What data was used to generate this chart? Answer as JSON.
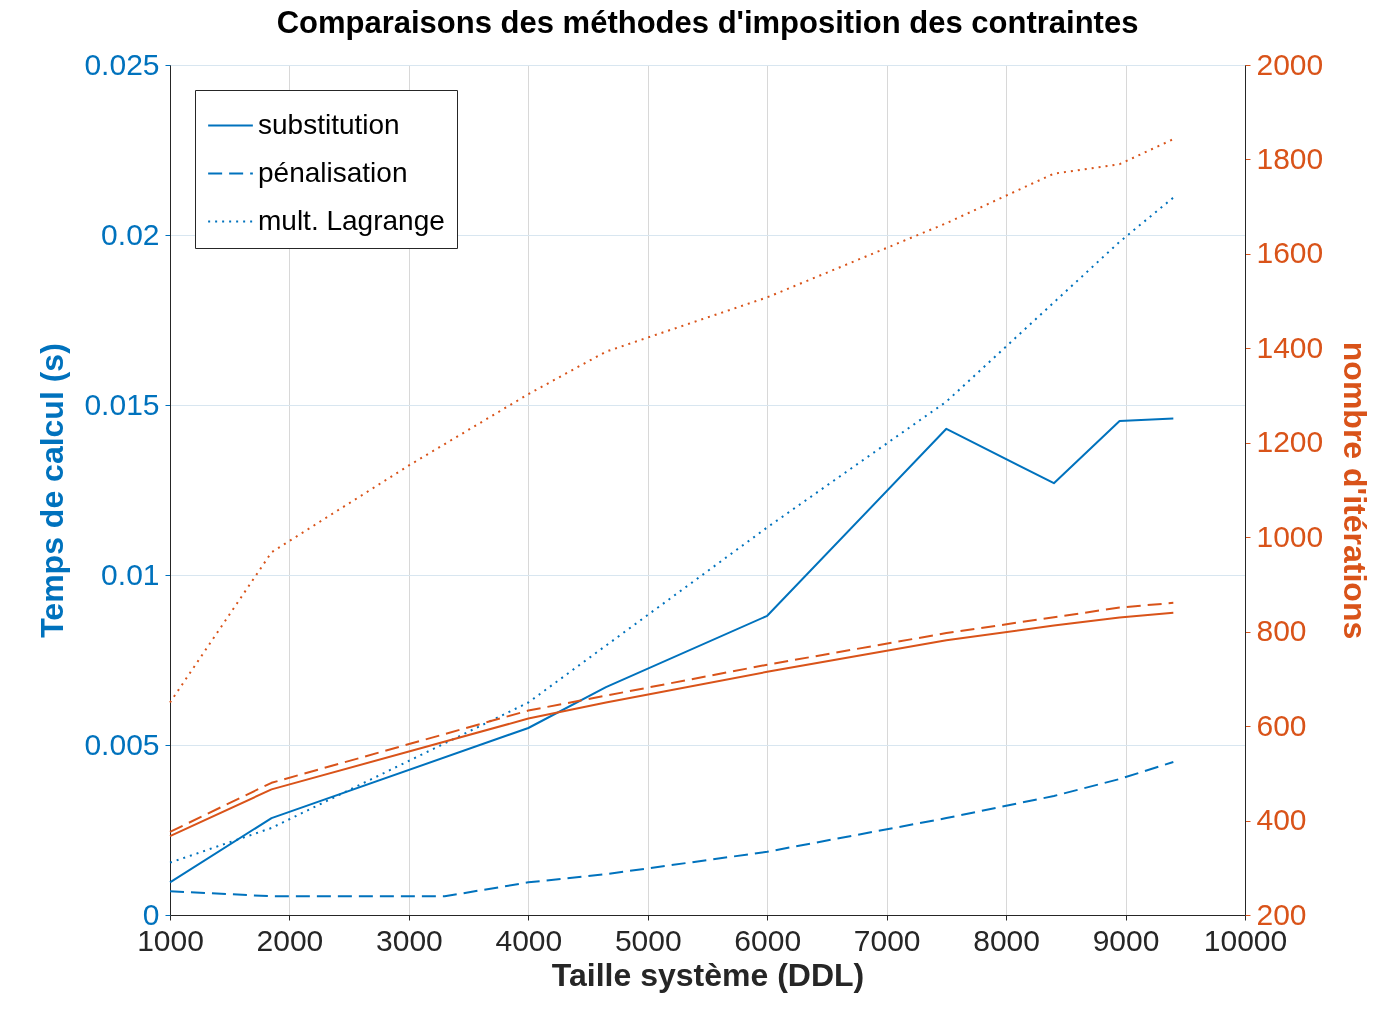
{
  "chart_data": {
    "type": "line",
    "title": "Comparaisons des méthodes d'imposition des contraintes",
    "xlabel": "Taille système (DDL)",
    "ylabel": "Temps de calcul (s)",
    "y2label": "nombre d'itérations",
    "xlim": [
      1000,
      10000
    ],
    "xticks": [
      1000,
      2000,
      3000,
      4000,
      5000,
      6000,
      7000,
      8000,
      9000,
      10000
    ],
    "ylim": [
      0,
      0.025
    ],
    "yticks": [
      0,
      0.005,
      0.01,
      0.015,
      0.02,
      0.025
    ],
    "y2lim": [
      200,
      2000
    ],
    "y2ticks": [
      200,
      400,
      600,
      800,
      1000,
      1200,
      1400,
      1600,
      1800,
      2000
    ],
    "grid": true,
    "legend": "top left",
    "marker": "none",
    "series": [
      {
        "name": "substitution",
        "color": "#0072bd",
        "line_style": "solid",
        "x": [
          1000,
          1850,
          4000,
          4650,
          6000,
          7500,
          8400,
          8950,
          9400
        ],
        "values": [
          0.00096,
          0.00285,
          0.0055,
          0.0067,
          0.0088,
          0.0143,
          0.0127,
          0.01453,
          0.0146
        ]
      },
      {
        "name": "pénalisation",
        "color": "#0072bd",
        "line_style": "dashed",
        "x": [
          1000,
          1850,
          3300,
          4000,
          4650,
          6000,
          7500,
          8400,
          8950,
          9400
        ],
        "values": [
          0.0007,
          0.00055,
          0.00055,
          0.00096,
          0.0012,
          0.00186,
          0.00285,
          0.0035,
          0.004,
          0.0045
        ]
      },
      {
        "name": "mult. Lagrange",
        "color": "#0072bd",
        "line_style": "dotted",
        "x": [
          1000,
          1850,
          4000,
          6000,
          7500,
          8950,
          9400
        ],
        "values": [
          0.00154,
          0.00256,
          0.00625,
          0.0114,
          0.0151,
          0.0198,
          0.0211
        ]
      },
      {
        "color": "#d95319",
        "line_style": "solid",
        "axis": "y2",
        "x": [
          1000,
          1850,
          4000,
          4650,
          6000,
          7500,
          8400,
          8950,
          9400
        ],
        "values": [
          367,
          466,
          616,
          650,
          715,
          782,
          813,
          830,
          840
        ]
      },
      {
        "color": "#d95319",
        "line_style": "dashed",
        "axis": "y2",
        "x": [
          1000,
          1850,
          4000,
          6000,
          7500,
          8950,
          9400
        ],
        "values": [
          376,
          480,
          633,
          730,
          797,
          851,
          861
        ]
      },
      {
        "color": "#d95319",
        "line_style": "dotted",
        "axis": "y2",
        "x": [
          1000,
          1850,
          3000,
          4000,
          4650,
          6000,
          7500,
          8400,
          8950,
          9400
        ],
        "values": [
          650,
          968,
          1152,
          1303,
          1393,
          1508,
          1665,
          1770,
          1790,
          1843
        ]
      }
    ]
  }
}
